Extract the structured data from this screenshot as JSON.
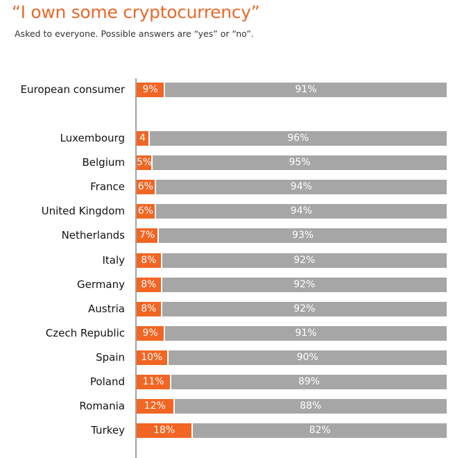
{
  "title": "“I own some cryptocurrency”",
  "subtitle": "Asked to everyone. Possible answers are “yes” or “no”.",
  "chart_data": {
    "type": "bar",
    "orientation": "horizontal",
    "stacked": true,
    "categories": [
      "European consumer",
      "Luxembourg",
      "Belgium",
      "France",
      "United Kingdom",
      "Netherlands",
      "Italy",
      "Germany",
      "Austria",
      "Czech Republic",
      "Spain",
      "Poland",
      "Romania",
      "Turkey"
    ],
    "series": [
      {
        "values": [
          9,
          4,
          5,
          6,
          6,
          7,
          8,
          8,
          8,
          9,
          10,
          11,
          12,
          18
        ],
        "labels": [
          "9%",
          "4",
          "5%",
          "6%",
          "6%",
          "7%",
          "8%",
          "8%",
          "8%",
          "9%",
          "10%",
          "11%",
          "12%",
          "18%"
        ],
        "color": "#f26522"
      },
      {
        "values": [
          91,
          96,
          95,
          94,
          94,
          93,
          92,
          92,
          92,
          91,
          90,
          89,
          88,
          82
        ],
        "labels": [
          "91%",
          "96%",
          "95%",
          "94%",
          "94%",
          "93%",
          "92%",
          "92%",
          "92%",
          "91%",
          "90%",
          "89%",
          "88%",
          "82%"
        ],
        "color": "#a6a6a6"
      }
    ],
    "xlim": [
      0,
      100
    ],
    "grid": false,
    "legend": "none"
  }
}
